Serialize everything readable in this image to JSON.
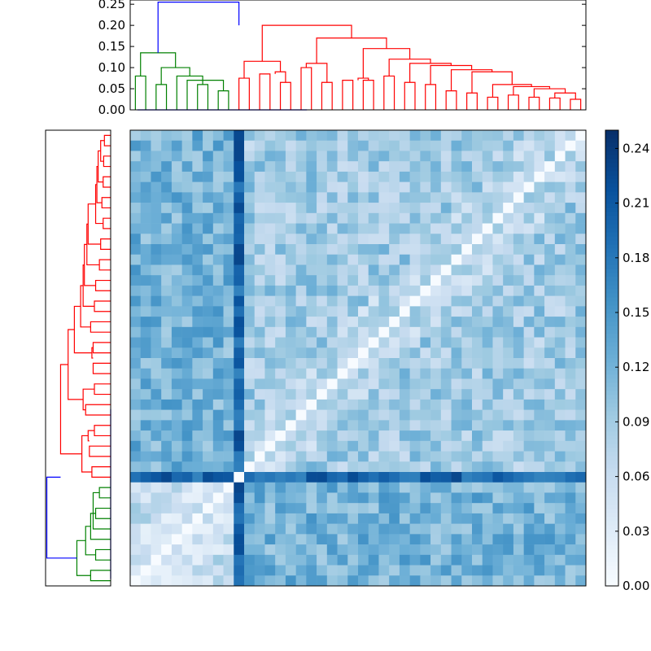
{
  "chart_data": [
    {
      "type": "dendrogram",
      "orientation": "top",
      "ylim": [
        0,
        0.26
      ],
      "yticks": [
        "0.00",
        "0.05",
        "0.10",
        "0.15",
        "0.20",
        "0.25"
      ],
      "colors": {
        "green": "#008000",
        "red": "#ff0000",
        "blue": "#0000ff"
      },
      "n_leaves": 44,
      "green_leaves": 10,
      "links": [
        [
          "green",
          0,
          1,
          0.0,
          0.08,
          0.0,
          0.0
        ],
        [
          "green",
          2,
          3,
          0.0,
          0.06,
          0.0,
          0.0
        ],
        [
          "green",
          6,
          7,
          0.0,
          0.06,
          0.0,
          0.0
        ],
        [
          "green",
          8,
          9,
          0.0,
          0.045,
          0.0,
          0.0
        ],
        [
          "green",
          5,
          8.5,
          0.0,
          0.07,
          0.045,
          0.0
        ],
        [
          "green",
          4,
          6.5,
          0.0,
          0.08,
          0.06,
          0.0
        ],
        [
          "green",
          2.5,
          5.25,
          0.06,
          0.1,
          0.08,
          0.07
        ],
        [
          "green",
          0.5,
          3.875,
          0.08,
          0.135,
          0.1,
          0.08
        ],
        [
          "red",
          10,
          11,
          0.0,
          0.075,
          0.0,
          0.0
        ],
        [
          "red",
          12,
          13,
          0.0,
          0.085,
          0.0,
          0.0
        ],
        [
          "red",
          14,
          15,
          0.0,
          0.065,
          0.0,
          0.0
        ],
        [
          "red",
          13.5,
          14.5,
          0.085,
          0.09,
          0.065,
          0.0
        ],
        [
          "red",
          10.5,
          14.0,
          0.075,
          0.115,
          0.09,
          0.0
        ],
        [
          "red",
          16,
          17,
          0.0,
          0.1,
          0.0,
          0.0
        ],
        [
          "red",
          18,
          19,
          0.0,
          0.065,
          0.0,
          0.0
        ],
        [
          "red",
          16.5,
          18.5,
          0.1,
          0.11,
          0.065,
          0.0
        ],
        [
          "red",
          20,
          21,
          0.0,
          0.07,
          0.0,
          0.0
        ],
        [
          "red",
          22,
          23,
          0.0,
          0.07,
          0.0,
          0.0
        ],
        [
          "red",
          21.5,
          22.5,
          0.07,
          0.075,
          0.07,
          0.0
        ],
        [
          "red",
          24,
          25,
          0.0,
          0.08,
          0.0,
          0.0
        ],
        [
          "red",
          26,
          27,
          0.0,
          0.065,
          0.0,
          0.0
        ],
        [
          "red",
          28,
          29,
          0.0,
          0.06,
          0.0,
          0.0
        ],
        [
          "red",
          30,
          31,
          0.0,
          0.045,
          0.0,
          0.0
        ],
        [
          "red",
          32,
          33,
          0.0,
          0.04,
          0.0,
          0.0
        ],
        [
          "red",
          34,
          35,
          0.0,
          0.03,
          0.0,
          0.0
        ],
        [
          "red",
          36,
          37,
          0.0,
          0.035,
          0.0,
          0.0
        ],
        [
          "red",
          38,
          39,
          0.0,
          0.03,
          0.0,
          0.0
        ],
        [
          "red",
          40,
          41,
          0.0,
          0.028,
          0.0,
          0.0
        ],
        [
          "red",
          42,
          43,
          0.0,
          0.025,
          0.0,
          0.0
        ],
        [
          "red",
          40.5,
          42.5,
          0.028,
          0.04,
          0.025,
          0.0
        ],
        [
          "red",
          38.5,
          41.5,
          0.03,
          0.05,
          0.04,
          0.0
        ],
        [
          "red",
          36.5,
          40.0,
          0.035,
          0.055,
          0.05,
          0.0
        ],
        [
          "red",
          34.5,
          38.25,
          0.03,
          0.06,
          0.055,
          0.0
        ],
        [
          "red",
          32.5,
          36.375,
          0.04,
          0.09,
          0.06,
          0.0
        ],
        [
          "red",
          30.5,
          34.4375,
          0.045,
          0.095,
          0.09,
          0.0
        ],
        [
          "red",
          28.5,
          32.46875,
          0.06,
          0.105,
          0.095,
          0.0
        ],
        [
          "red",
          26.5,
          30.484375,
          0.065,
          0.11,
          0.105,
          0.0
        ],
        [
          "red",
          24.5,
          28.4921875,
          0.08,
          0.12,
          0.11,
          0.0
        ],
        [
          "red",
          22.0,
          26.49609375,
          0.075,
          0.145,
          0.12,
          0.0
        ],
        [
          "red",
          17.5,
          24.248046875,
          0.11,
          0.17,
          0.145,
          0.0
        ],
        [
          "red",
          12.25,
          20.8740234375,
          0.115,
          0.2,
          0.17,
          0.0
        ],
        [
          "blue",
          16.56201171875,
          0.2,
          0.0,
          0.0,
          0.0,
          0.0
        ],
        [
          "blue",
          2.1875,
          10.0,
          0.135,
          0.255,
          0.2,
          0.0
        ]
      ]
    },
    {
      "type": "heatmap",
      "size": [
        44,
        44
      ],
      "colormap": "Blues",
      "vmin": 0.0,
      "vmax": 0.25,
      "highlight_row": 10,
      "highlight_col": 10,
      "diagonal_zero": true,
      "colorbar_ticks": [
        "0.00",
        "0.03",
        "0.06",
        "0.09",
        "0.12",
        "0.15",
        "0.18",
        "0.21",
        "0.24"
      ]
    }
  ]
}
